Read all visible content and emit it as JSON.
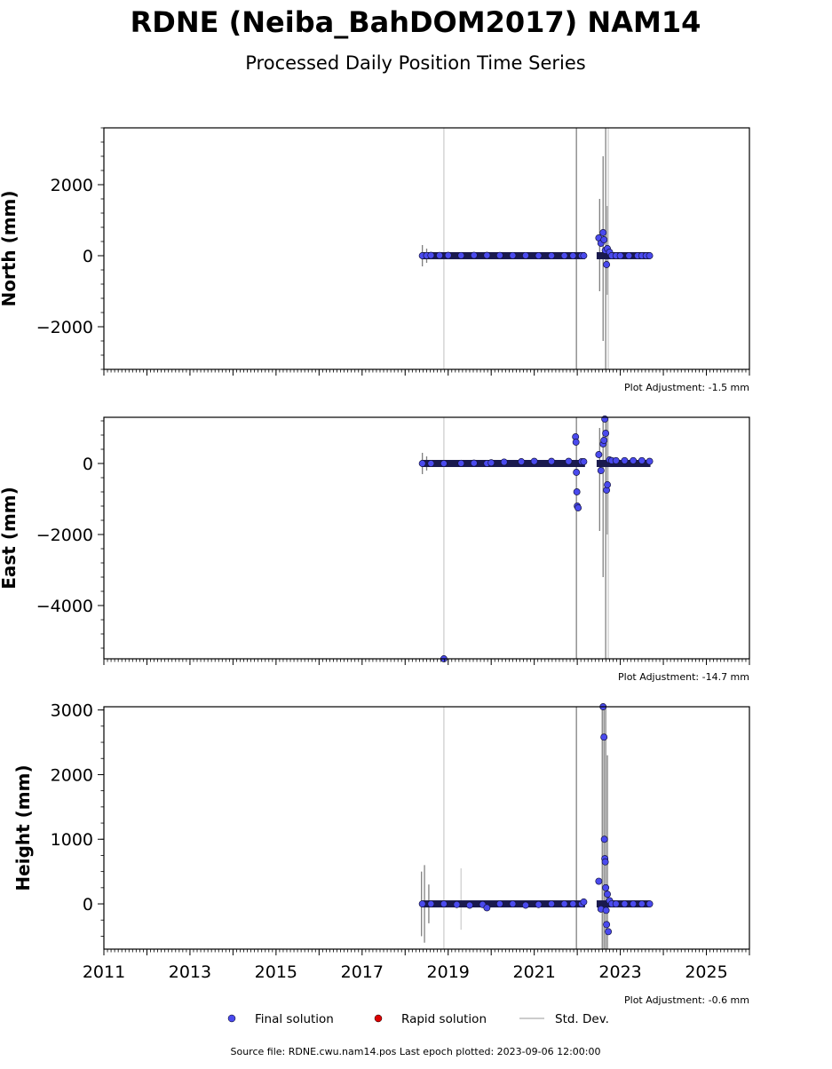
{
  "title": "RDNE (Neiba_BahDOM2017) NAM14",
  "subtitle": "Processed Daily Position Time Series",
  "footer": "Source file: RDNE.cwu.nam14.pos  Last epoch plotted: 2023-09-06 12:00:00",
  "legend": [
    {
      "label": "Final solution",
      "color": "#4a4aee",
      "marker": "dot"
    },
    {
      "label": "Rapid solution",
      "color": "#dd0000",
      "marker": "dot"
    },
    {
      "label": "Std. Dev.",
      "color": "#cccccc",
      "marker": "line"
    }
  ],
  "chart_data": [
    {
      "type": "scatter",
      "ylabel": "North (mm)",
      "adjustment": "Plot Adjustment: -1.5 mm",
      "xlim": [
        2011,
        2026
      ],
      "ylim": [
        -3200,
        3600
      ],
      "yticks": [
        -2000,
        0,
        2000
      ],
      "ytick_labels": [
        "−2000",
        "0",
        "2000"
      ],
      "minor_step": 400,
      "xtick_labels_visible": false,
      "final_solution": {
        "x": [
          2018.4,
          2018.5,
          2018.6,
          2018.8,
          2019.0,
          2019.3,
          2019.6,
          2019.9,
          2020.2,
          2020.5,
          2020.8,
          2021.1,
          2021.4,
          2021.7,
          2021.9,
          2022.1,
          2022.15,
          2022.5,
          2022.55,
          2022.6,
          2022.62,
          2022.65,
          2022.68,
          2022.7,
          2022.75,
          2022.8,
          2022.9,
          2023.0,
          2023.2,
          2023.4,
          2023.5,
          2023.6,
          2023.68
        ],
        "y": [
          0,
          5,
          10,
          8,
          10,
          5,
          12,
          10,
          8,
          5,
          5,
          0,
          0,
          0,
          0,
          0,
          0,
          500,
          350,
          650,
          450,
          150,
          -250,
          200,
          100,
          0,
          0,
          0,
          0,
          0,
          0,
          0,
          0
        ]
      },
      "std_dev": [
        {
          "x": 2018.4,
          "low": -300,
          "high": 300,
          "shade": "dark"
        },
        {
          "x": 2018.5,
          "low": -200,
          "high": 200,
          "shade": "dark"
        },
        {
          "x": 2018.9,
          "low": -3200,
          "high": 3600,
          "shade": "light"
        },
        {
          "x": 2021.98,
          "low": -3200,
          "high": 3600,
          "shade": "dark"
        },
        {
          "x": 2022.52,
          "low": -1000,
          "high": 1600,
          "shade": "dark"
        },
        {
          "x": 2022.6,
          "low": -2400,
          "high": 2800,
          "shade": "dark"
        },
        {
          "x": 2022.66,
          "low": -3200,
          "high": 3600,
          "shade": "dark"
        },
        {
          "x": 2022.7,
          "low": -1100,
          "high": 1400,
          "shade": "dark"
        },
        {
          "x": 2022.72,
          "low": -3200,
          "high": 3600,
          "shade": "light"
        }
      ]
    },
    {
      "type": "scatter",
      "ylabel": "East (mm)",
      "adjustment": "Plot Adjustment: -14.7 mm",
      "xlim": [
        2011,
        2026
      ],
      "ylim": [
        -5500,
        1300
      ],
      "yticks": [
        -4000,
        -2000,
        0
      ],
      "ytick_labels": [
        "−4000",
        "−2000",
        "0"
      ],
      "minor_step": 400,
      "xtick_labels_visible": false,
      "final_solution": {
        "x": [
          2018.4,
          2018.6,
          2018.9,
          2019.3,
          2019.6,
          2019.9,
          2020.0,
          2020.3,
          2020.7,
          2021.0,
          2021.4,
          2021.8,
          2021.96,
          2021.97,
          2021.98,
          2021.99,
          2022.0,
          2022.02,
          2022.1,
          2022.15,
          2022.5,
          2022.55,
          2022.6,
          2022.62,
          2022.64,
          2022.66,
          2022.68,
          2022.7,
          2022.75,
          2022.8,
          2022.9,
          2023.1,
          2023.3,
          2023.5,
          2023.68,
          2018.9
        ],
        "y": [
          0,
          0,
          0,
          5,
          10,
          0,
          20,
          40,
          50,
          60,
          60,
          60,
          750,
          600,
          -250,
          -800,
          -1200,
          -1250,
          50,
          50,
          250,
          -200,
          550,
          650,
          1250,
          850,
          -750,
          -600,
          100,
          80,
          80,
          80,
          80,
          80,
          60,
          -5500
        ]
      },
      "std_dev": [
        {
          "x": 2018.4,
          "low": -300,
          "high": 300,
          "shade": "dark"
        },
        {
          "x": 2018.5,
          "low": -200,
          "high": 200,
          "shade": "dark"
        },
        {
          "x": 2018.9,
          "low": -5500,
          "high": 1300,
          "shade": "light"
        },
        {
          "x": 2021.98,
          "low": -5500,
          "high": 1300,
          "shade": "dark"
        },
        {
          "x": 2022.52,
          "low": -1900,
          "high": 1000,
          "shade": "dark"
        },
        {
          "x": 2022.6,
          "low": -3200,
          "high": 1300,
          "shade": "dark"
        },
        {
          "x": 2022.66,
          "low": -5500,
          "high": 1300,
          "shade": "dark"
        },
        {
          "x": 2022.7,
          "low": -2000,
          "high": 1300,
          "shade": "dark"
        },
        {
          "x": 2022.72,
          "low": -5500,
          "high": 1300,
          "shade": "light"
        }
      ]
    },
    {
      "type": "scatter",
      "ylabel": "Height (mm)",
      "adjustment": "Plot Adjustment: -0.6 mm",
      "xlim": [
        2011,
        2026
      ],
      "ylim": [
        -700,
        3050
      ],
      "yticks": [
        0,
        1000,
        2000,
        3000
      ],
      "ytick_labels": [
        "0",
        "1000",
        "2000",
        "3000"
      ],
      "minor_step": 250,
      "xtick_labels_visible": true,
      "xticks": [
        2011,
        2013,
        2015,
        2017,
        2019,
        2021,
        2023,
        2025
      ],
      "xtick_labels": [
        "2011",
        "2013",
        "2015",
        "2017",
        "2019",
        "2021",
        "2023",
        "2025"
      ],
      "final_solution": {
        "x": [
          2018.4,
          2018.6,
          2018.9,
          2019.2,
          2019.5,
          2019.8,
          2019.9,
          2020.2,
          2020.5,
          2020.8,
          2021.1,
          2021.4,
          2021.7,
          2021.9,
          2022.1,
          2022.15,
          2022.5,
          2022.55,
          2022.6,
          2022.62,
          2022.63,
          2022.64,
          2022.65,
          2022.66,
          2022.67,
          2022.68,
          2022.7,
          2022.72,
          2022.75,
          2022.8,
          2022.9,
          2023.1,
          2023.3,
          2023.5,
          2023.68
        ],
        "y": [
          0,
          0,
          0,
          -10,
          -20,
          -10,
          -60,
          0,
          0,
          -20,
          -10,
          0,
          0,
          0,
          0,
          30,
          350,
          -80,
          3050,
          2580,
          1000,
          700,
          650,
          250,
          -100,
          -320,
          150,
          -430,
          50,
          0,
          0,
          0,
          0,
          0,
          0
        ]
      },
      "std_dev": [
        {
          "x": 2018.38,
          "low": -500,
          "high": 500,
          "shade": "dark"
        },
        {
          "x": 2018.45,
          "low": -600,
          "high": 600,
          "shade": "dark"
        },
        {
          "x": 2018.55,
          "low": -300,
          "high": 300,
          "shade": "dark"
        },
        {
          "x": 2018.9,
          "low": -700,
          "high": 3050,
          "shade": "light"
        },
        {
          "x": 2019.3,
          "low": -400,
          "high": 550,
          "shade": "light"
        },
        {
          "x": 2021.98,
          "low": -700,
          "high": 3050,
          "shade": "dark"
        },
        {
          "x": 2022.58,
          "low": -700,
          "high": 3050,
          "shade": "dark"
        },
        {
          "x": 2022.62,
          "low": -700,
          "high": 3050,
          "shade": "dark"
        },
        {
          "x": 2022.66,
          "low": -700,
          "high": 3050,
          "shade": "dark"
        },
        {
          "x": 2022.7,
          "low": -700,
          "high": 2300,
          "shade": "dark"
        }
      ]
    }
  ]
}
